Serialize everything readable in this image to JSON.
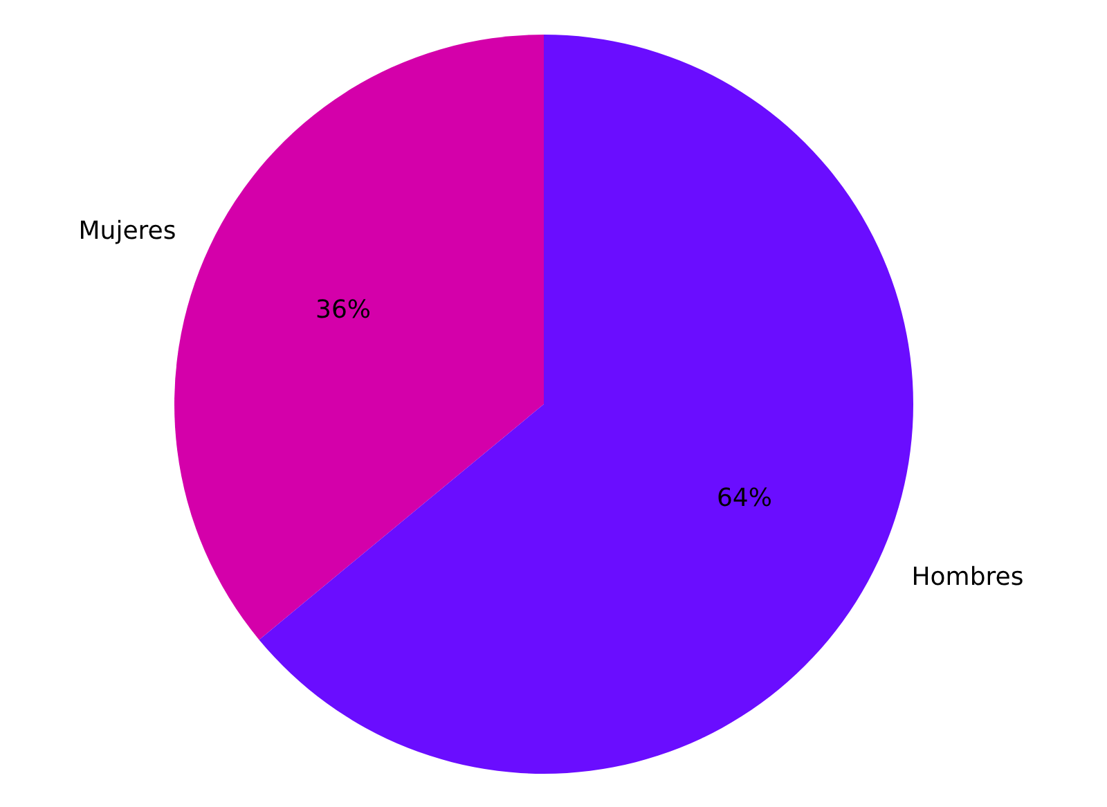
{
  "chart_data": {
    "type": "pie",
    "categories": [
      "Mujeres",
      "Hombres"
    ],
    "values": [
      36,
      64
    ],
    "colors": [
      "#d400aa",
      "#6a0dff"
    ],
    "value_labels": [
      "36%",
      "64%"
    ]
  }
}
